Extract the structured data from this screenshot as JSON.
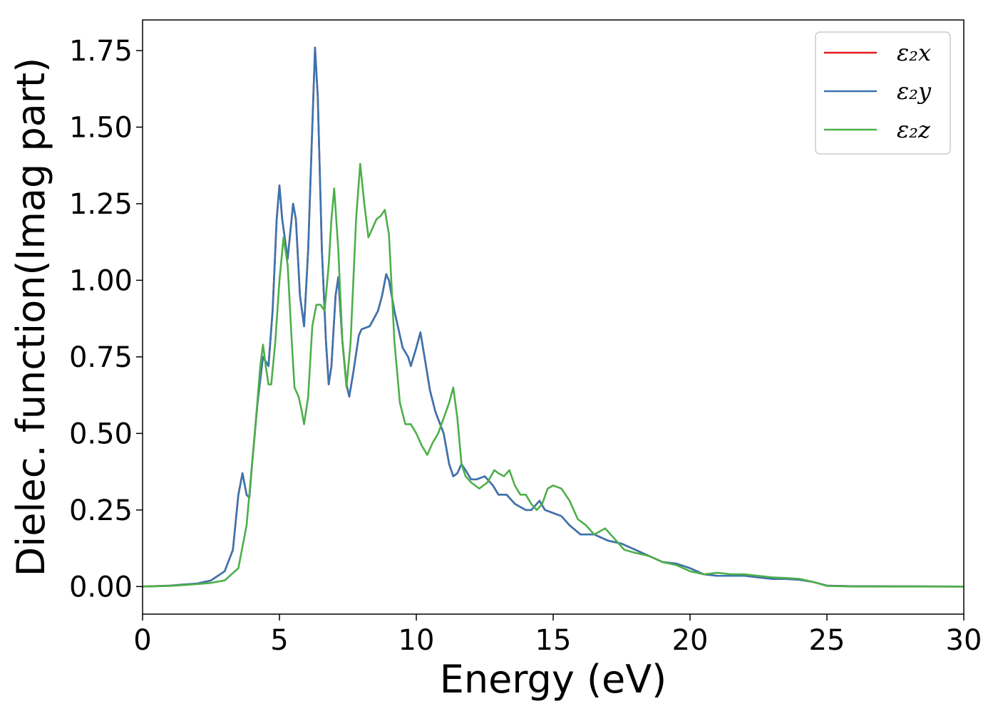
{
  "chart_data": {
    "type": "line",
    "xlabel": "Energy (eV)",
    "ylabel": "Dielec. function(Imag part)",
    "xlim": [
      0,
      30
    ],
    "ylim": [
      -0.09,
      1.85
    ],
    "xticks": [
      0,
      5,
      10,
      15,
      20,
      25,
      30
    ],
    "yticks": [
      0.0,
      0.25,
      0.5,
      0.75,
      1.0,
      1.25,
      1.5,
      1.75
    ],
    "xtick_labels": [
      "0",
      "5",
      "10",
      "15",
      "20",
      "25",
      "30"
    ],
    "ytick_labels": [
      "0.00",
      "0.25",
      "0.50",
      "0.75",
      "1.00",
      "1.25",
      "1.50",
      "1.75"
    ],
    "grid": false,
    "legend_position": "top-right",
    "series": [
      {
        "name": "ε₂x",
        "color": "#e41a1c",
        "points": [
          [
            0,
            0.0
          ],
          [
            1,
            0.003
          ],
          [
            2,
            0.01
          ],
          [
            2.5,
            0.02
          ],
          [
            3,
            0.05
          ],
          [
            3.3,
            0.12
          ],
          [
            3.5,
            0.3
          ],
          [
            3.65,
            0.37
          ],
          [
            3.8,
            0.3
          ],
          [
            3.9,
            0.29
          ],
          [
            4.0,
            0.4
          ],
          [
            4.2,
            0.6
          ],
          [
            4.4,
            0.75
          ],
          [
            4.6,
            0.72
          ],
          [
            4.75,
            0.9
          ],
          [
            4.9,
            1.2
          ],
          [
            5.0,
            1.31
          ],
          [
            5.1,
            1.2
          ],
          [
            5.3,
            1.07
          ],
          [
            5.5,
            1.25
          ],
          [
            5.6,
            1.2
          ],
          [
            5.75,
            0.95
          ],
          [
            5.9,
            0.85
          ],
          [
            6.05,
            1.1
          ],
          [
            6.2,
            1.5
          ],
          [
            6.3,
            1.76
          ],
          [
            6.4,
            1.6
          ],
          [
            6.55,
            1.1
          ],
          [
            6.7,
            0.8
          ],
          [
            6.8,
            0.66
          ],
          [
            6.9,
            0.72
          ],
          [
            7.05,
            0.95
          ],
          [
            7.15,
            1.01
          ],
          [
            7.3,
            0.8
          ],
          [
            7.45,
            0.66
          ],
          [
            7.55,
            0.62
          ],
          [
            7.7,
            0.7
          ],
          [
            7.9,
            0.82
          ],
          [
            8.0,
            0.84
          ],
          [
            8.3,
            0.85
          ],
          [
            8.6,
            0.9
          ],
          [
            8.75,
            0.95
          ],
          [
            8.9,
            1.02
          ],
          [
            9.0,
            1.0
          ],
          [
            9.2,
            0.9
          ],
          [
            9.5,
            0.78
          ],
          [
            9.7,
            0.75
          ],
          [
            9.8,
            0.72
          ],
          [
            10.0,
            0.78
          ],
          [
            10.15,
            0.83
          ],
          [
            10.3,
            0.75
          ],
          [
            10.5,
            0.64
          ],
          [
            10.7,
            0.57
          ],
          [
            11.0,
            0.5
          ],
          [
            11.2,
            0.4
          ],
          [
            11.35,
            0.36
          ],
          [
            11.5,
            0.37
          ],
          [
            11.65,
            0.4
          ],
          [
            11.8,
            0.38
          ],
          [
            12.0,
            0.35
          ],
          [
            12.2,
            0.35
          ],
          [
            12.5,
            0.36
          ],
          [
            12.8,
            0.33
          ],
          [
            13.0,
            0.3
          ],
          [
            13.3,
            0.3
          ],
          [
            13.6,
            0.27
          ],
          [
            14.0,
            0.25
          ],
          [
            14.2,
            0.25
          ],
          [
            14.5,
            0.28
          ],
          [
            14.7,
            0.25
          ],
          [
            15.0,
            0.24
          ],
          [
            15.3,
            0.23
          ],
          [
            15.6,
            0.2
          ],
          [
            16.0,
            0.17
          ],
          [
            16.5,
            0.17
          ],
          [
            17.0,
            0.15
          ],
          [
            17.5,
            0.14
          ],
          [
            18.0,
            0.12
          ],
          [
            18.5,
            0.1
          ],
          [
            19.0,
            0.08
          ],
          [
            19.5,
            0.075
          ],
          [
            20.0,
            0.06
          ],
          [
            20.5,
            0.04
          ],
          [
            21.0,
            0.035
          ],
          [
            21.5,
            0.035
          ],
          [
            22.0,
            0.035
          ],
          [
            22.5,
            0.03
          ],
          [
            23.0,
            0.025
          ],
          [
            23.5,
            0.025
          ],
          [
            24.0,
            0.022
          ],
          [
            24.5,
            0.015
          ],
          [
            25.0,
            0.003
          ],
          [
            26,
            0.001
          ],
          [
            30,
            0.0
          ]
        ]
      },
      {
        "name": "ε₂y",
        "color": "#3a75b0",
        "points": [
          [
            0,
            0.0
          ],
          [
            1,
            0.003
          ],
          [
            2,
            0.01
          ],
          [
            2.5,
            0.02
          ],
          [
            3,
            0.05
          ],
          [
            3.3,
            0.12
          ],
          [
            3.5,
            0.3
          ],
          [
            3.65,
            0.37
          ],
          [
            3.8,
            0.3
          ],
          [
            3.9,
            0.29
          ],
          [
            4.0,
            0.4
          ],
          [
            4.2,
            0.6
          ],
          [
            4.4,
            0.75
          ],
          [
            4.6,
            0.72
          ],
          [
            4.75,
            0.9
          ],
          [
            4.9,
            1.2
          ],
          [
            5.0,
            1.31
          ],
          [
            5.1,
            1.2
          ],
          [
            5.3,
            1.07
          ],
          [
            5.5,
            1.25
          ],
          [
            5.6,
            1.2
          ],
          [
            5.75,
            0.95
          ],
          [
            5.9,
            0.85
          ],
          [
            6.05,
            1.1
          ],
          [
            6.2,
            1.5
          ],
          [
            6.3,
            1.76
          ],
          [
            6.4,
            1.6
          ],
          [
            6.55,
            1.1
          ],
          [
            6.7,
            0.8
          ],
          [
            6.8,
            0.66
          ],
          [
            6.9,
            0.72
          ],
          [
            7.05,
            0.95
          ],
          [
            7.15,
            1.01
          ],
          [
            7.3,
            0.8
          ],
          [
            7.45,
            0.66
          ],
          [
            7.55,
            0.62
          ],
          [
            7.7,
            0.7
          ],
          [
            7.9,
            0.82
          ],
          [
            8.0,
            0.84
          ],
          [
            8.3,
            0.85
          ],
          [
            8.6,
            0.9
          ],
          [
            8.75,
            0.95
          ],
          [
            8.9,
            1.02
          ],
          [
            9.0,
            1.0
          ],
          [
            9.2,
            0.9
          ],
          [
            9.5,
            0.78
          ],
          [
            9.7,
            0.75
          ],
          [
            9.8,
            0.72
          ],
          [
            10.0,
            0.78
          ],
          [
            10.15,
            0.83
          ],
          [
            10.3,
            0.75
          ],
          [
            10.5,
            0.64
          ],
          [
            10.7,
            0.57
          ],
          [
            11.0,
            0.5
          ],
          [
            11.2,
            0.4
          ],
          [
            11.35,
            0.36
          ],
          [
            11.5,
            0.37
          ],
          [
            11.65,
            0.4
          ],
          [
            11.8,
            0.38
          ],
          [
            12.0,
            0.35
          ],
          [
            12.2,
            0.35
          ],
          [
            12.5,
            0.36
          ],
          [
            12.8,
            0.33
          ],
          [
            13.0,
            0.3
          ],
          [
            13.3,
            0.3
          ],
          [
            13.6,
            0.27
          ],
          [
            14.0,
            0.25
          ],
          [
            14.2,
            0.25
          ],
          [
            14.5,
            0.28
          ],
          [
            14.7,
            0.25
          ],
          [
            15.0,
            0.24
          ],
          [
            15.3,
            0.23
          ],
          [
            15.6,
            0.2
          ],
          [
            16.0,
            0.17
          ],
          [
            16.5,
            0.17
          ],
          [
            17.0,
            0.15
          ],
          [
            17.5,
            0.14
          ],
          [
            18.0,
            0.12
          ],
          [
            18.5,
            0.1
          ],
          [
            19.0,
            0.08
          ],
          [
            19.5,
            0.075
          ],
          [
            20.0,
            0.06
          ],
          [
            20.5,
            0.04
          ],
          [
            21.0,
            0.035
          ],
          [
            21.5,
            0.035
          ],
          [
            22.0,
            0.035
          ],
          [
            22.5,
            0.03
          ],
          [
            23.0,
            0.025
          ],
          [
            23.5,
            0.025
          ],
          [
            24.0,
            0.022
          ],
          [
            24.5,
            0.015
          ],
          [
            25.0,
            0.003
          ],
          [
            26,
            0.001
          ],
          [
            30,
            0.0
          ]
        ]
      },
      {
        "name": "ε₂z",
        "color": "#4daf4a",
        "points": [
          [
            0,
            0.0
          ],
          [
            1,
            0.002
          ],
          [
            2,
            0.008
          ],
          [
            2.5,
            0.012
          ],
          [
            3,
            0.02
          ],
          [
            3.5,
            0.06
          ],
          [
            3.8,
            0.2
          ],
          [
            4.1,
            0.5
          ],
          [
            4.3,
            0.72
          ],
          [
            4.4,
            0.79
          ],
          [
            4.5,
            0.72
          ],
          [
            4.6,
            0.66
          ],
          [
            4.7,
            0.66
          ],
          [
            4.85,
            0.8
          ],
          [
            5.0,
            1.0
          ],
          [
            5.15,
            1.14
          ],
          [
            5.3,
            1.05
          ],
          [
            5.45,
            0.8
          ],
          [
            5.55,
            0.65
          ],
          [
            5.7,
            0.62
          ],
          [
            5.8,
            0.58
          ],
          [
            5.9,
            0.53
          ],
          [
            6.05,
            0.62
          ],
          [
            6.2,
            0.85
          ],
          [
            6.35,
            0.92
          ],
          [
            6.5,
            0.92
          ],
          [
            6.65,
            0.9
          ],
          [
            6.8,
            1.05
          ],
          [
            6.9,
            1.2
          ],
          [
            7.0,
            1.3
          ],
          [
            7.15,
            1.1
          ],
          [
            7.3,
            0.8
          ],
          [
            7.45,
            0.65
          ],
          [
            7.6,
            0.8
          ],
          [
            7.8,
            1.2
          ],
          [
            7.95,
            1.38
          ],
          [
            8.1,
            1.25
          ],
          [
            8.25,
            1.14
          ],
          [
            8.4,
            1.17
          ],
          [
            8.55,
            1.2
          ],
          [
            8.7,
            1.21
          ],
          [
            8.85,
            1.23
          ],
          [
            9.0,
            1.15
          ],
          [
            9.2,
            0.8
          ],
          [
            9.4,
            0.6
          ],
          [
            9.6,
            0.53
          ],
          [
            9.8,
            0.53
          ],
          [
            10.0,
            0.5
          ],
          [
            10.2,
            0.46
          ],
          [
            10.4,
            0.43
          ],
          [
            10.6,
            0.47
          ],
          [
            10.8,
            0.5
          ],
          [
            11.0,
            0.55
          ],
          [
            11.2,
            0.6
          ],
          [
            11.35,
            0.65
          ],
          [
            11.5,
            0.55
          ],
          [
            11.65,
            0.4
          ],
          [
            11.8,
            0.36
          ],
          [
            12.0,
            0.34
          ],
          [
            12.3,
            0.32
          ],
          [
            12.6,
            0.34
          ],
          [
            12.85,
            0.38
          ],
          [
            13.0,
            0.37
          ],
          [
            13.2,
            0.36
          ],
          [
            13.4,
            0.38
          ],
          [
            13.6,
            0.33
          ],
          [
            13.8,
            0.3
          ],
          [
            14.0,
            0.3
          ],
          [
            14.2,
            0.27
          ],
          [
            14.4,
            0.25
          ],
          [
            14.6,
            0.27
          ],
          [
            14.8,
            0.32
          ],
          [
            15.0,
            0.33
          ],
          [
            15.3,
            0.32
          ],
          [
            15.6,
            0.28
          ],
          [
            15.9,
            0.22
          ],
          [
            16.2,
            0.2
          ],
          [
            16.5,
            0.17
          ],
          [
            16.9,
            0.19
          ],
          [
            17.2,
            0.16
          ],
          [
            17.6,
            0.12
          ],
          [
            18.0,
            0.11
          ],
          [
            18.5,
            0.1
          ],
          [
            19.0,
            0.08
          ],
          [
            19.5,
            0.07
          ],
          [
            20.0,
            0.05
          ],
          [
            20.5,
            0.04
          ],
          [
            21.0,
            0.045
          ],
          [
            21.5,
            0.04
          ],
          [
            22.0,
            0.04
          ],
          [
            22.5,
            0.035
          ],
          [
            23.0,
            0.03
          ],
          [
            23.5,
            0.028
          ],
          [
            24.0,
            0.025
          ],
          [
            24.5,
            0.015
          ],
          [
            25.0,
            0.002
          ],
          [
            26,
            0.0
          ],
          [
            30,
            0.0
          ]
        ]
      }
    ]
  }
}
